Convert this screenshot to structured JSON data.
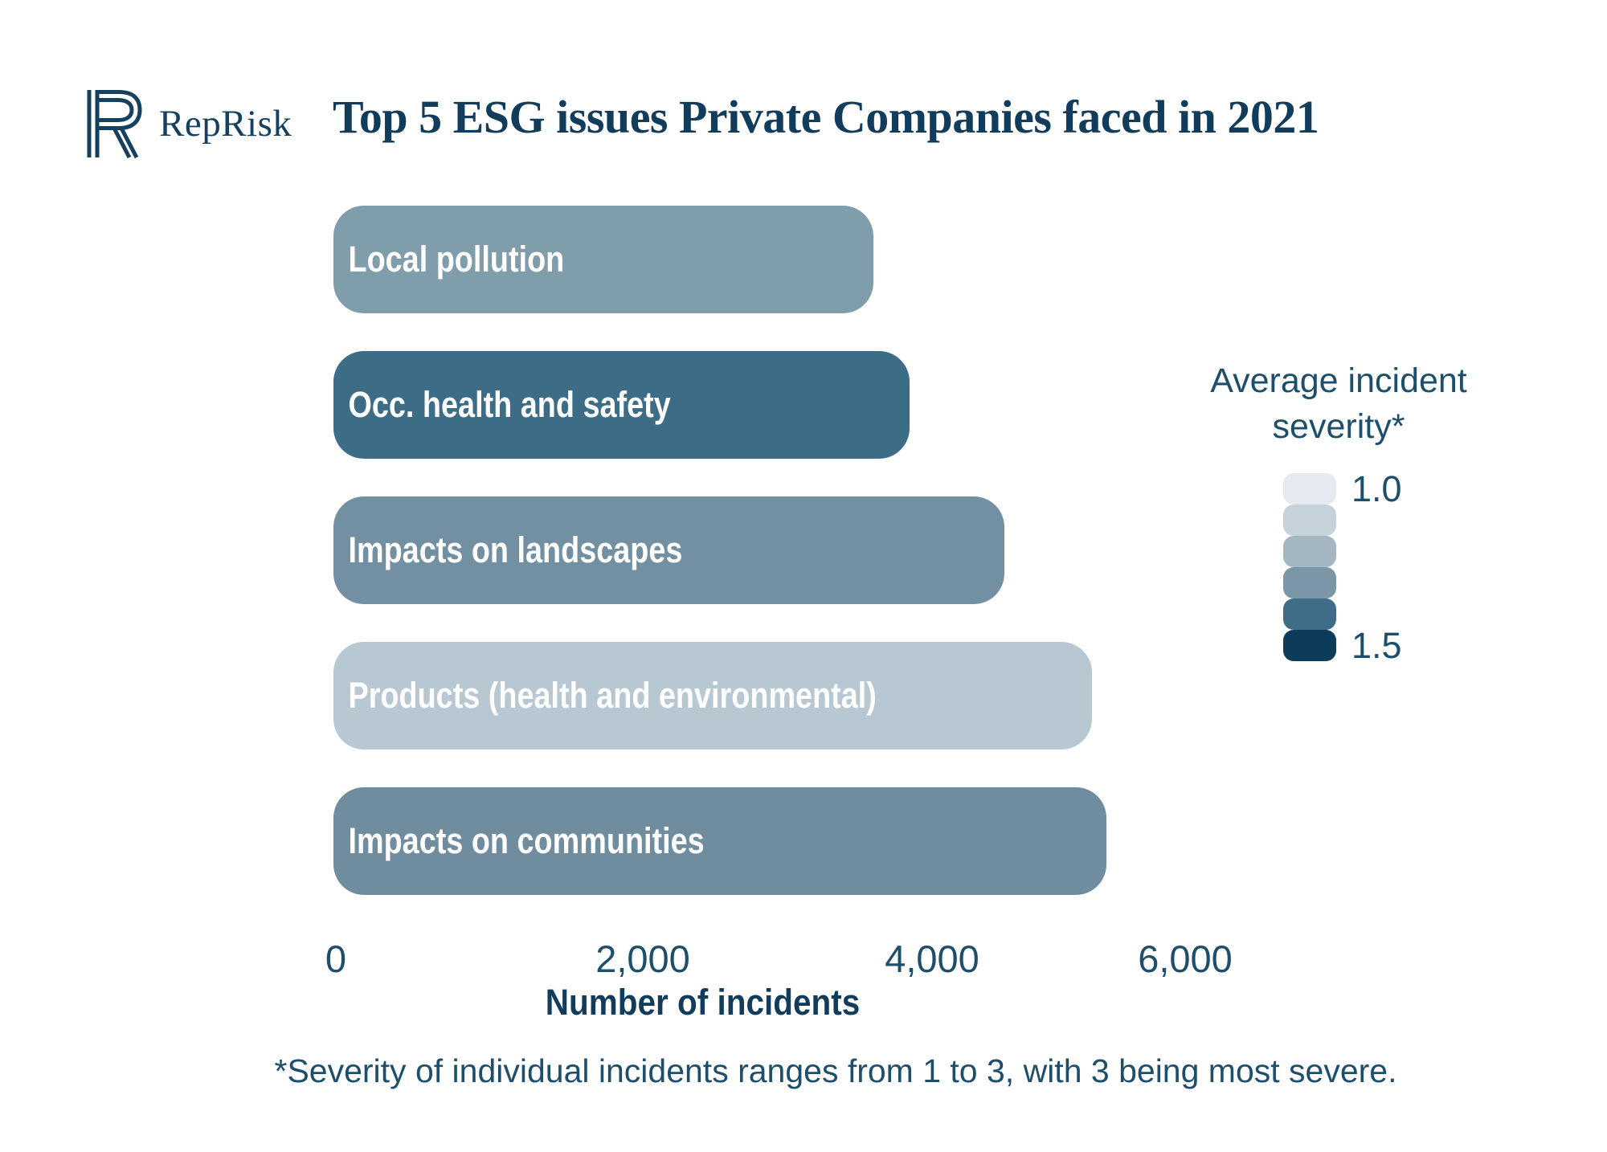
{
  "colors": {
    "background": "#FFFFFF",
    "text_navy": "#1D4E6B",
    "title_navy": "#123C5C",
    "logo_navy": "#16405F"
  },
  "header": {
    "logo_text": "RepRisk"
  },
  "chart_data": {
    "type": "bar",
    "orientation": "horizontal",
    "title": "Top 5 ESG issues Private Companies faced in 2021",
    "categories": [
      "Local pollution",
      "Occ. health and safety",
      "Impacts on landscapes",
      "Products (health and environmental)",
      "Impacts on communities"
    ],
    "values": [
      3700,
      3950,
      4600,
      5200,
      5300
    ],
    "bar_colors": [
      "#7F9DAB",
      "#3D6C86",
      "#7290A1",
      "#B8C8D2",
      "#6F8D9E"
    ],
    "xlabel": "Number of incidents",
    "x_ticks": [
      {
        "value": 0,
        "label": "0"
      },
      {
        "value": 2000,
        "label": "2,000"
      },
      {
        "value": 4000,
        "label": "4,000"
      },
      {
        "value": 6000,
        "label": "6,000"
      }
    ],
    "xlim": [
      0,
      6300
    ],
    "grid": false,
    "legend": {
      "title": "Average incident severity*",
      "position": "right",
      "min_label": "1.0",
      "max_label": "1.5",
      "swatches": [
        "#E4EAEF",
        "#C6D2DA",
        "#A3B6C1",
        "#7B97A7",
        "#3F6D88",
        "#0D3B5A"
      ]
    },
    "footnote": "*Severity of individual incidents ranges from 1 to 3, with 3 being most severe."
  }
}
